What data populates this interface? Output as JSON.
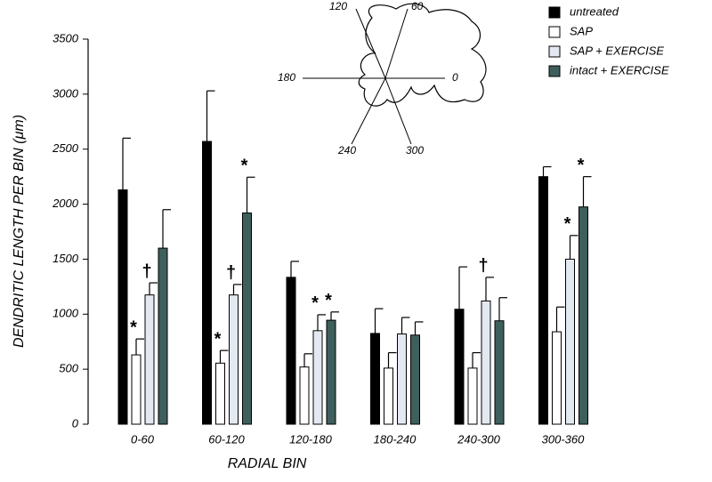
{
  "chart_data": {
    "type": "bar",
    "x_label": "RADIAL BIN",
    "y_label": "DENDRITIC LENGTH PER BIN (μm)",
    "categories": [
      "0-60",
      "60-120",
      "120-180",
      "180-240",
      "240-300",
      "300-360"
    ],
    "series": [
      {
        "name": "untreated",
        "color": "#000000",
        "values": [
          2130,
          2570,
          1335,
          825,
          1045,
          2250
        ],
        "errors": [
          470,
          460,
          145,
          225,
          385,
          90
        ]
      },
      {
        "name": "SAP",
        "color": "#ffffff",
        "values": [
          630,
          555,
          520,
          510,
          510,
          840
        ],
        "errors": [
          145,
          115,
          120,
          140,
          140,
          225
        ]
      },
      {
        "name": "SAP + EXERCISE",
        "color": "#e4e8f0",
        "values": [
          1175,
          1175,
          850,
          820,
          1120,
          1500
        ],
        "errors": [
          110,
          95,
          145,
          150,
          215,
          215
        ]
      },
      {
        "name": "intact + EXERCISE",
        "color": "#3e5f5b",
        "values": [
          1600,
          1920,
          945,
          810,
          940,
          1975
        ],
        "errors": [
          350,
          325,
          75,
          120,
          210,
          275
        ]
      }
    ],
    "annotations": [
      {
        "category": 0,
        "series": 1,
        "text": "*"
      },
      {
        "category": 0,
        "series": 2,
        "text": "†"
      },
      {
        "category": 1,
        "series": 1,
        "text": "*"
      },
      {
        "category": 1,
        "series": 2,
        "text": "†"
      },
      {
        "category": 1,
        "series": 3,
        "text": "*"
      },
      {
        "category": 2,
        "series": 2,
        "text": "*"
      },
      {
        "category": 2,
        "series": 3,
        "text": "*"
      },
      {
        "category": 4,
        "series": 2,
        "text": "†"
      },
      {
        "category": 5,
        "series": 2,
        "text": "*"
      },
      {
        "category": 5,
        "series": 3,
        "text": "*"
      }
    ],
    "ylim": [
      0,
      3500
    ],
    "yticks": [
      0,
      500,
      1000,
      1500,
      2000,
      2500,
      3000,
      3500
    ],
    "legend": "top-right",
    "inset_labels": [
      "120",
      "60",
      "180",
      "0",
      "240",
      "300"
    ]
  }
}
